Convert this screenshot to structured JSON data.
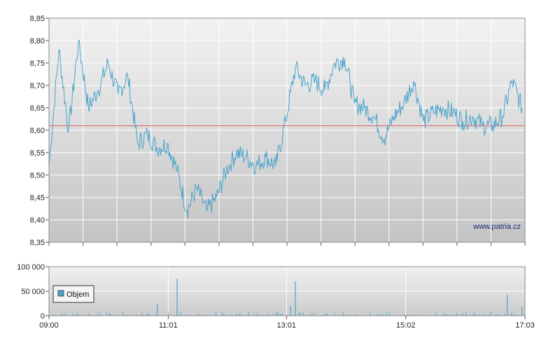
{
  "watermark": "www.patria.cz",
  "colors": {
    "series": "#4aa3cc",
    "reference": "#e06060",
    "grid": "#ffffff",
    "bg_top": "#f2f2f2",
    "bg_bottom": "#c4c4c4",
    "frame": "#888888"
  },
  "chart_data": [
    {
      "type": "line",
      "name": "price",
      "ylim": [
        8.35,
        8.85
      ],
      "yticks": [
        "8,35",
        "8,40",
        "8,45",
        "8,50",
        "8,55",
        "8,60",
        "8,65",
        "8,70",
        "8,75",
        "8,80",
        "8,85"
      ],
      "reference_line": 8.61,
      "x": [
        "09:00",
        "09:10",
        "09:20",
        "09:30",
        "09:40",
        "09:50",
        "10:00",
        "10:10",
        "10:20",
        "10:30",
        "10:40",
        "10:50",
        "11:00",
        "11:10",
        "11:20",
        "11:30",
        "11:40",
        "11:50",
        "12:00",
        "12:10",
        "12:20",
        "12:30",
        "12:40",
        "12:50",
        "13:00",
        "13:10",
        "13:20",
        "13:30",
        "13:40",
        "13:50",
        "14:00",
        "14:10",
        "14:20",
        "14:30",
        "14:40",
        "14:50",
        "15:00",
        "15:10",
        "15:20",
        "15:30",
        "15:40",
        "15:50",
        "16:00",
        "16:10",
        "16:20",
        "16:30",
        "16:40",
        "16:50",
        "17:00"
      ],
      "values": [
        8.52,
        8.78,
        8.6,
        8.8,
        8.65,
        8.69,
        8.75,
        8.68,
        8.72,
        8.57,
        8.59,
        8.56,
        8.57,
        8.51,
        8.42,
        8.47,
        8.42,
        8.45,
        8.51,
        8.55,
        8.54,
        8.52,
        8.54,
        8.52,
        8.62,
        8.74,
        8.7,
        8.71,
        8.69,
        8.75,
        8.76,
        8.66,
        8.65,
        8.63,
        8.58,
        8.63,
        8.66,
        8.71,
        8.62,
        8.64,
        8.65,
        8.64,
        8.62,
        8.63,
        8.61,
        8.61,
        8.63,
        8.71,
        8.65
      ]
    },
    {
      "type": "bar",
      "name": "volume",
      "legend": "Objem",
      "ylim": [
        0,
        100000
      ],
      "yticks": [
        "0",
        "50 000",
        "100 000"
      ],
      "xticks": [
        "09:00",
        "11:01",
        "13:01",
        "15:02",
        "17:03"
      ],
      "spikes": [
        {
          "time": "10:50",
          "value": 25000
        },
        {
          "time": "11:10",
          "value": 75000
        },
        {
          "time": "13:05",
          "value": 20000
        },
        {
          "time": "13:10",
          "value": 70000
        },
        {
          "time": "16:45",
          "value": 43000
        },
        {
          "time": "17:00",
          "value": 18000
        }
      ]
    }
  ]
}
